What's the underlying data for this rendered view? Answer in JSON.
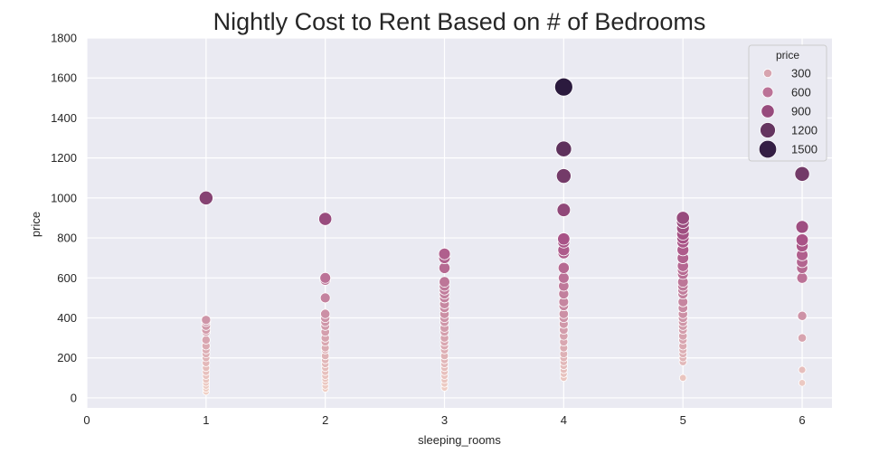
{
  "chart_data": {
    "type": "scatter",
    "title": "Nightly Cost to Rent Based on # of Bedrooms",
    "xlabel": "sleeping_rooms",
    "ylabel": "price",
    "xlim": [
      0,
      6.25
    ],
    "ylim": [
      -50,
      1800
    ],
    "xticks": [
      0,
      1,
      2,
      3,
      4,
      5,
      6
    ],
    "yticks": [
      0,
      200,
      400,
      600,
      800,
      1000,
      1200,
      1400,
      1600,
      1800
    ],
    "grid": true,
    "background": "#eaeaf2",
    "legend": {
      "title": "price",
      "position": "top-right",
      "entries": [
        {
          "label": "300",
          "value": 300
        },
        {
          "label": "600",
          "value": 600
        },
        {
          "label": "900",
          "value": 900
        },
        {
          "label": "1200",
          "value": 1200
        },
        {
          "label": "1500",
          "value": 1500
        }
      ]
    },
    "color_scale": {
      "low": "#f1d2c6",
      "mid": "#a95387",
      "high": "#2a1a3e"
    },
    "points": [
      {
        "x": 1,
        "y": 1000
      },
      {
        "x": 1,
        "y": 390
      },
      {
        "x": 1,
        "y": 380
      },
      {
        "x": 1,
        "y": 360
      },
      {
        "x": 1,
        "y": 340
      },
      {
        "x": 1,
        "y": 330
      },
      {
        "x": 1,
        "y": 290
      },
      {
        "x": 1,
        "y": 260
      },
      {
        "x": 1,
        "y": 240
      },
      {
        "x": 1,
        "y": 220
      },
      {
        "x": 1,
        "y": 200
      },
      {
        "x": 1,
        "y": 175
      },
      {
        "x": 1,
        "y": 150
      },
      {
        "x": 1,
        "y": 130
      },
      {
        "x": 1,
        "y": 110
      },
      {
        "x": 1,
        "y": 90
      },
      {
        "x": 1,
        "y": 75
      },
      {
        "x": 1,
        "y": 60
      },
      {
        "x": 1,
        "y": 45
      },
      {
        "x": 1,
        "y": 30
      },
      {
        "x": 2,
        "y": 895
      },
      {
        "x": 2,
        "y": 600
      },
      {
        "x": 2,
        "y": 590
      },
      {
        "x": 2,
        "y": 500
      },
      {
        "x": 2,
        "y": 420
      },
      {
        "x": 2,
        "y": 400
      },
      {
        "x": 2,
        "y": 380
      },
      {
        "x": 2,
        "y": 360
      },
      {
        "x": 2,
        "y": 330
      },
      {
        "x": 2,
        "y": 300
      },
      {
        "x": 2,
        "y": 280
      },
      {
        "x": 2,
        "y": 250
      },
      {
        "x": 2,
        "y": 240
      },
      {
        "x": 2,
        "y": 210
      },
      {
        "x": 2,
        "y": 190
      },
      {
        "x": 2,
        "y": 170
      },
      {
        "x": 2,
        "y": 150
      },
      {
        "x": 2,
        "y": 130
      },
      {
        "x": 2,
        "y": 110
      },
      {
        "x": 2,
        "y": 95
      },
      {
        "x": 2,
        "y": 80
      },
      {
        "x": 2,
        "y": 60
      },
      {
        "x": 2,
        "y": 45
      },
      {
        "x": 3,
        "y": 720
      },
      {
        "x": 3,
        "y": 700
      },
      {
        "x": 3,
        "y": 650
      },
      {
        "x": 3,
        "y": 580
      },
      {
        "x": 3,
        "y": 560
      },
      {
        "x": 3,
        "y": 540
      },
      {
        "x": 3,
        "y": 520
      },
      {
        "x": 3,
        "y": 500
      },
      {
        "x": 3,
        "y": 470
      },
      {
        "x": 3,
        "y": 450
      },
      {
        "x": 3,
        "y": 420
      },
      {
        "x": 3,
        "y": 400
      },
      {
        "x": 3,
        "y": 380
      },
      {
        "x": 3,
        "y": 350
      },
      {
        "x": 3,
        "y": 330
      },
      {
        "x": 3,
        "y": 300
      },
      {
        "x": 3,
        "y": 280
      },
      {
        "x": 3,
        "y": 260
      },
      {
        "x": 3,
        "y": 240
      },
      {
        "x": 3,
        "y": 210
      },
      {
        "x": 3,
        "y": 190
      },
      {
        "x": 3,
        "y": 170
      },
      {
        "x": 3,
        "y": 150
      },
      {
        "x": 3,
        "y": 130
      },
      {
        "x": 3,
        "y": 110
      },
      {
        "x": 3,
        "y": 90
      },
      {
        "x": 3,
        "y": 70
      },
      {
        "x": 3,
        "y": 50
      },
      {
        "x": 4,
        "y": 1555
      },
      {
        "x": 4,
        "y": 1245
      },
      {
        "x": 4,
        "y": 1110
      },
      {
        "x": 4,
        "y": 940
      },
      {
        "x": 4,
        "y": 795
      },
      {
        "x": 4,
        "y": 780
      },
      {
        "x": 4,
        "y": 740
      },
      {
        "x": 4,
        "y": 725
      },
      {
        "x": 4,
        "y": 650
      },
      {
        "x": 4,
        "y": 600
      },
      {
        "x": 4,
        "y": 560
      },
      {
        "x": 4,
        "y": 520
      },
      {
        "x": 4,
        "y": 480
      },
      {
        "x": 4,
        "y": 460
      },
      {
        "x": 4,
        "y": 420
      },
      {
        "x": 4,
        "y": 400
      },
      {
        "x": 4,
        "y": 370
      },
      {
        "x": 4,
        "y": 340
      },
      {
        "x": 4,
        "y": 310
      },
      {
        "x": 4,
        "y": 280
      },
      {
        "x": 4,
        "y": 250
      },
      {
        "x": 4,
        "y": 220
      },
      {
        "x": 4,
        "y": 200
      },
      {
        "x": 4,
        "y": 180
      },
      {
        "x": 4,
        "y": 160
      },
      {
        "x": 4,
        "y": 140
      },
      {
        "x": 4,
        "y": 120
      },
      {
        "x": 4,
        "y": 100
      },
      {
        "x": 5,
        "y": 900
      },
      {
        "x": 5,
        "y": 880
      },
      {
        "x": 5,
        "y": 850
      },
      {
        "x": 5,
        "y": 820
      },
      {
        "x": 5,
        "y": 800
      },
      {
        "x": 5,
        "y": 780
      },
      {
        "x": 5,
        "y": 740
      },
      {
        "x": 5,
        "y": 700
      },
      {
        "x": 5,
        "y": 660
      },
      {
        "x": 5,
        "y": 640
      },
      {
        "x": 5,
        "y": 620
      },
      {
        "x": 5,
        "y": 580
      },
      {
        "x": 5,
        "y": 560
      },
      {
        "x": 5,
        "y": 540
      },
      {
        "x": 5,
        "y": 520
      },
      {
        "x": 5,
        "y": 480
      },
      {
        "x": 5,
        "y": 450
      },
      {
        "x": 5,
        "y": 420
      },
      {
        "x": 5,
        "y": 400
      },
      {
        "x": 5,
        "y": 380
      },
      {
        "x": 5,
        "y": 360
      },
      {
        "x": 5,
        "y": 340
      },
      {
        "x": 5,
        "y": 310
      },
      {
        "x": 5,
        "y": 290
      },
      {
        "x": 5,
        "y": 260
      },
      {
        "x": 5,
        "y": 240
      },
      {
        "x": 5,
        "y": 220
      },
      {
        "x": 5,
        "y": 200
      },
      {
        "x": 5,
        "y": 180
      },
      {
        "x": 5,
        "y": 100
      },
      {
        "x": 6,
        "y": 1120
      },
      {
        "x": 6,
        "y": 855
      },
      {
        "x": 6,
        "y": 790
      },
      {
        "x": 6,
        "y": 760
      },
      {
        "x": 6,
        "y": 715
      },
      {
        "x": 6,
        "y": 680
      },
      {
        "x": 6,
        "y": 650
      },
      {
        "x": 6,
        "y": 600
      },
      {
        "x": 6,
        "y": 410
      },
      {
        "x": 6,
        "y": 300
      },
      {
        "x": 6,
        "y": 140
      },
      {
        "x": 6,
        "y": 75
      }
    ]
  }
}
